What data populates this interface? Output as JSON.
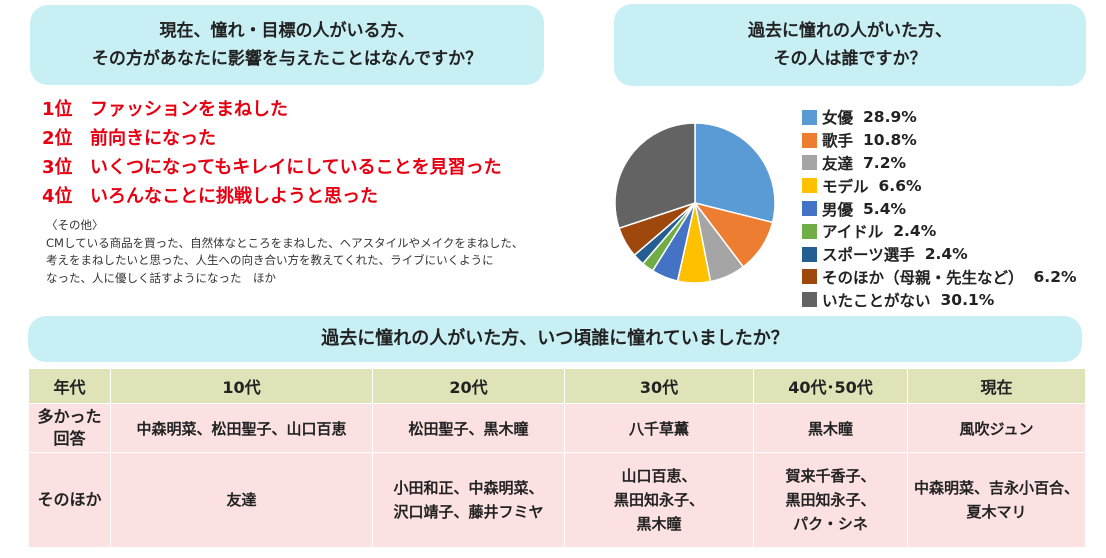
{
  "question1": {
    "lines": [
      "現在、憧れ・目標の人がいる方、",
      "その方があなたに影響を与えたことはなんですか？"
    ]
  },
  "ranking": [
    {
      "rank": "1位",
      "text": "ファッションをまねした"
    },
    {
      "rank": "2位",
      "text": "前向きになった"
    },
    {
      "rank": "3位",
      "text": "いくつになってもキレイにしていることを見習った"
    },
    {
      "rank": "4位",
      "text": "いろんなことに挑戦しようと思った"
    }
  ],
  "others": {
    "heading": "〈その他〉",
    "lines": [
      "CMしている商品を買った、自然体なところをまねした、ヘアスタイルやメイクをまねした、",
      "考えをまねしたいと思った、人生への向き合い方を教えてくれた、ライブにいくように",
      "なった、人に優しく話すようになった　ほか"
    ]
  },
  "question2": {
    "lines": [
      "過去に憧れの人がいた方、",
      "その人は誰ですか？"
    ]
  },
  "chart_data": {
    "type": "pie",
    "start": "12 o'clock",
    "direction": "clockwise",
    "legend_position": "right",
    "slices": [
      {
        "label": "女優",
        "pct": "28.9%",
        "value": 28.9,
        "color": "#5b9bd5"
      },
      {
        "label": "歌手",
        "pct": "10.8%",
        "value": 10.8,
        "color": "#ed7d31"
      },
      {
        "label": "友達",
        "pct": "7.2%",
        "value": 7.2,
        "color": "#a5a5a5"
      },
      {
        "label": "モデル",
        "pct": "6.6%",
        "value": 6.6,
        "color": "#ffc000"
      },
      {
        "label": "男優",
        "pct": "5.4%",
        "value": 5.4,
        "color": "#4472c4"
      },
      {
        "label": "アイドル",
        "pct": "2.4%",
        "value": 2.4,
        "color": "#70ad47"
      },
      {
        "label": "スポーツ選手",
        "pct": "2.4%",
        "value": 2.4,
        "color": "#255e91"
      },
      {
        "label": "そのほか（母親・先生など）",
        "pct": "6.2%",
        "value": 6.2,
        "color": "#9e480e"
      },
      {
        "label": "いたことがない",
        "pct": "30.1%",
        "value": 30.1,
        "color": "#636363"
      }
    ]
  },
  "question3": {
    "text": "過去に憧れの人がいた方、いつ頃誰に憧れていましたか？"
  },
  "table": {
    "headers": [
      "年代",
      "10代",
      "20代",
      "30代",
      "40代･50代",
      "現在"
    ],
    "rows": [
      {
        "label_lines": [
          "多かった",
          "回答"
        ],
        "cells": [
          [
            "中森明菜、松田聖子、山口百恵"
          ],
          [
            "松田聖子、黒木瞳"
          ],
          [
            "八千草薫"
          ],
          [
            "黒木瞳"
          ],
          [
            "風吹ジュン"
          ]
        ]
      },
      {
        "label_lines": [
          "そのほか"
        ],
        "cells": [
          [
            "友達"
          ],
          [
            "小田和正、中森明菜、",
            "沢口靖子、藤井フミヤ"
          ],
          [
            "山口百恵、",
            "黒田知永子、",
            "黒木瞳"
          ],
          [
            "賀来千香子、",
            "黒田知永子、",
            "パク・シネ"
          ],
          [
            "中森明菜、吉永小百合、",
            "夏木マリ"
          ]
        ]
      }
    ]
  }
}
